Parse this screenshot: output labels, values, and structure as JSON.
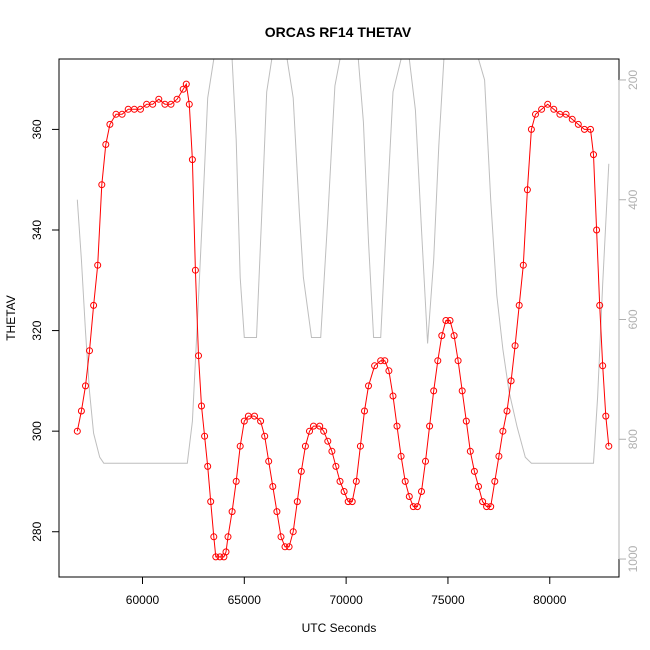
{
  "chart_data": {
    "type": "line",
    "title": "ORCAS RF14 THETAV",
    "xlabel": "UTC Seconds",
    "ylabel": "THETAV",
    "xlim": [
      55900,
      83400
    ],
    "ylim": [
      271,
      374
    ],
    "x_ticks": [
      60000,
      65000,
      70000,
      75000,
      80000
    ],
    "y_ticks": [
      280,
      300,
      320,
      340,
      360
    ],
    "y2_lim": [
      1030,
      165
    ],
    "y2_ticks": [
      200,
      400,
      600,
      800,
      1000
    ],
    "grid": false,
    "series": [
      {
        "role": "primary",
        "color": "#ff0000",
        "style": "line+circles",
        "points": [
          [
            56800,
            300
          ],
          [
            57000,
            304
          ],
          [
            57200,
            309
          ],
          [
            57400,
            316
          ],
          [
            57600,
            325
          ],
          [
            57800,
            333
          ],
          [
            58000,
            349
          ],
          [
            58200,
            357
          ],
          [
            58400,
            361
          ],
          [
            58700,
            363
          ],
          [
            59000,
            363
          ],
          [
            59300,
            364
          ],
          [
            59600,
            364
          ],
          [
            59900,
            364
          ],
          [
            60200,
            365
          ],
          [
            60500,
            365
          ],
          [
            60800,
            366
          ],
          [
            61100,
            365
          ],
          [
            61400,
            365
          ],
          [
            61700,
            366
          ],
          [
            62000,
            368
          ],
          [
            62150,
            369
          ],
          [
            62300,
            365
          ],
          [
            62450,
            354
          ],
          [
            62600,
            332
          ],
          [
            62750,
            315
          ],
          [
            62900,
            305
          ],
          [
            63050,
            299
          ],
          [
            63200,
            293
          ],
          [
            63350,
            286
          ],
          [
            63500,
            279
          ],
          [
            63600,
            275
          ],
          [
            63800,
            275
          ],
          [
            64000,
            275
          ],
          [
            64100,
            276
          ],
          [
            64200,
            279
          ],
          [
            64400,
            284
          ],
          [
            64600,
            290
          ],
          [
            64800,
            297
          ],
          [
            65000,
            302
          ],
          [
            65200,
            303
          ],
          [
            65500,
            303
          ],
          [
            65800,
            302
          ],
          [
            66000,
            299
          ],
          [
            66200,
            294
          ],
          [
            66400,
            289
          ],
          [
            66600,
            284
          ],
          [
            66800,
            279
          ],
          [
            67000,
            277
          ],
          [
            67200,
            277
          ],
          [
            67400,
            280
          ],
          [
            67600,
            286
          ],
          [
            67800,
            292
          ],
          [
            68000,
            297
          ],
          [
            68200,
            300
          ],
          [
            68400,
            301
          ],
          [
            68700,
            301
          ],
          [
            68900,
            300
          ],
          [
            69100,
            298
          ],
          [
            69300,
            296
          ],
          [
            69500,
            293
          ],
          [
            69700,
            290
          ],
          [
            69900,
            288
          ],
          [
            70100,
            286
          ],
          [
            70300,
            286
          ],
          [
            70500,
            290
          ],
          [
            70700,
            297
          ],
          [
            70900,
            304
          ],
          [
            71100,
            309
          ],
          [
            71400,
            313
          ],
          [
            71700,
            314
          ],
          [
            71900,
            314
          ],
          [
            72100,
            312
          ],
          [
            72300,
            307
          ],
          [
            72500,
            301
          ],
          [
            72700,
            295
          ],
          [
            72900,
            290
          ],
          [
            73100,
            287
          ],
          [
            73300,
            285
          ],
          [
            73500,
            285
          ],
          [
            73700,
            288
          ],
          [
            73900,
            294
          ],
          [
            74100,
            301
          ],
          [
            74300,
            308
          ],
          [
            74500,
            314
          ],
          [
            74700,
            319
          ],
          [
            74900,
            322
          ],
          [
            75100,
            322
          ],
          [
            75300,
            319
          ],
          [
            75500,
            314
          ],
          [
            75700,
            308
          ],
          [
            75900,
            302
          ],
          [
            76100,
            296
          ],
          [
            76300,
            292
          ],
          [
            76500,
            289
          ],
          [
            76700,
            286
          ],
          [
            76900,
            285
          ],
          [
            77100,
            285
          ],
          [
            77300,
            290
          ],
          [
            77500,
            295
          ],
          [
            77700,
            300
          ],
          [
            77900,
            304
          ],
          [
            78100,
            310
          ],
          [
            78300,
            317
          ],
          [
            78500,
            325
          ],
          [
            78700,
            333
          ],
          [
            78900,
            348
          ],
          [
            79100,
            360
          ],
          [
            79300,
            363
          ],
          [
            79600,
            364
          ],
          [
            79900,
            365
          ],
          [
            80200,
            364
          ],
          [
            80500,
            363
          ],
          [
            80800,
            363
          ],
          [
            81100,
            362
          ],
          [
            81400,
            361
          ],
          [
            81700,
            360
          ],
          [
            82000,
            360
          ],
          [
            82150,
            355
          ],
          [
            82300,
            340
          ],
          [
            82450,
            325
          ],
          [
            82600,
            313
          ],
          [
            82750,
            303
          ],
          [
            82900,
            297
          ]
        ]
      },
      {
        "role": "secondary",
        "color": "#bebebe",
        "style": "line",
        "points": [
          [
            56800,
            400
          ],
          [
            57000,
            500
          ],
          [
            57200,
            620
          ],
          [
            57400,
            720
          ],
          [
            57600,
            790
          ],
          [
            57900,
            830
          ],
          [
            58100,
            840
          ],
          [
            62200,
            840
          ],
          [
            62450,
            770
          ],
          [
            62700,
            600
          ],
          [
            62950,
            420
          ],
          [
            63200,
            230
          ],
          [
            63500,
            30
          ],
          [
            64400,
            30
          ],
          [
            64600,
            300
          ],
          [
            64800,
            530
          ],
          [
            65000,
            630
          ],
          [
            65600,
            630
          ],
          [
            65850,
            430
          ],
          [
            66100,
            220
          ],
          [
            66350,
            30
          ],
          [
            67100,
            30
          ],
          [
            67400,
            230
          ],
          [
            67700,
            420
          ],
          [
            67900,
            530
          ],
          [
            68300,
            630
          ],
          [
            68750,
            630
          ],
          [
            69100,
            430
          ],
          [
            69450,
            210
          ],
          [
            69700,
            30
          ],
          [
            70600,
            30
          ],
          [
            70850,
            270
          ],
          [
            71100,
            470
          ],
          [
            71350,
            630
          ],
          [
            71700,
            630
          ],
          [
            72000,
            420
          ],
          [
            72300,
            220
          ],
          [
            72700,
            30
          ],
          [
            73100,
            30
          ],
          [
            73400,
            250
          ],
          [
            73700,
            450
          ],
          [
            74000,
            640
          ],
          [
            74300,
            500
          ],
          [
            74550,
            310
          ],
          [
            74800,
            130
          ],
          [
            75200,
            30
          ],
          [
            76500,
            30
          ],
          [
            76800,
            200
          ],
          [
            77100,
            400
          ],
          [
            77400,
            560
          ],
          [
            77700,
            650
          ],
          [
            78000,
            720
          ],
          [
            78400,
            780
          ],
          [
            78800,
            830
          ],
          [
            79100,
            840
          ],
          [
            82150,
            840
          ],
          [
            82350,
            730
          ],
          [
            82600,
            540
          ],
          [
            82900,
            340
          ]
        ]
      }
    ]
  }
}
